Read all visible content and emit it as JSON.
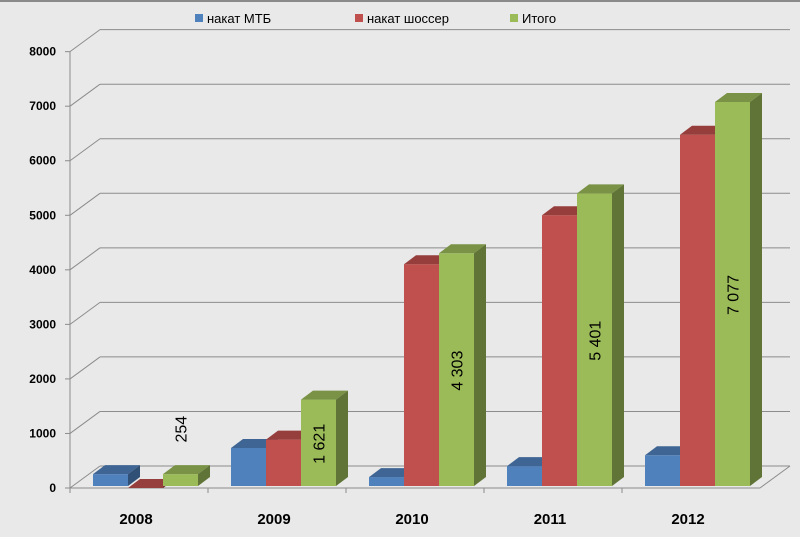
{
  "chart_data": {
    "type": "bar",
    "style": "3d-clustered-column",
    "categories": [
      "2008",
      "2009",
      "2010",
      "2011",
      "2012"
    ],
    "series": [
      {
        "name": "накат МТБ",
        "color": "#4f81bd",
        "values": [
          254,
          734,
          200,
          400,
          600
        ]
      },
      {
        "name": "накат шоссер",
        "color": "#c0504d",
        "values": [
          0,
          887,
          4103,
          5001,
          6477
        ]
      },
      {
        "name": "Итого",
        "color": "#9bbb59",
        "values": [
          254,
          1621,
          4303,
          5401,
          7077
        ]
      }
    ],
    "data_labels": {
      "series": "Итого",
      "labels": [
        "254",
        "1 621",
        "4 303",
        "5 401",
        "7 077"
      ]
    },
    "ylim": [
      0,
      8000
    ],
    "yticks": [
      "0",
      "1000",
      "2000",
      "3000",
      "4000",
      "5000",
      "6000",
      "7000",
      "8000"
    ],
    "grid": true,
    "legend": "top"
  }
}
